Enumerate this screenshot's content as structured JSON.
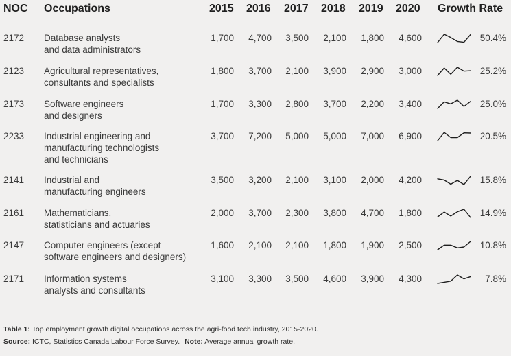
{
  "headers": {
    "noc": "NOC",
    "occupations": "Occupations",
    "y2015": "2015",
    "y2016": "2016",
    "y2017": "2017",
    "y2018": "2018",
    "y2019": "2019",
    "y2020": "2020",
    "growth": "Growth Rate"
  },
  "rows": [
    {
      "noc": "2172",
      "line1": "Database analysts",
      "line2": "and data administrators",
      "line3": "",
      "v": [
        "1,700",
        "4,700",
        "3,500",
        "2,100",
        "1,800",
        "4,600"
      ],
      "series": [
        1700,
        4700,
        3500,
        2100,
        1800,
        4600
      ],
      "rate": "50.4%"
    },
    {
      "noc": "2123",
      "line1": "Agricultural representatives,",
      "line2": "consultants and specialists",
      "line3": "",
      "v": [
        "1,800",
        "3,700",
        "2,100",
        "3,900",
        "2,900",
        "3,000"
      ],
      "series": [
        1800,
        3700,
        2100,
        3900,
        2900,
        3000
      ],
      "rate": "25.2%"
    },
    {
      "noc": "2173",
      "line1": "Software engineers",
      "line2": "and designers",
      "line3": "",
      "v": [
        "1,700",
        "3,300",
        "2,800",
        "3,700",
        "2,200",
        "3,400"
      ],
      "series": [
        1700,
        3300,
        2800,
        3700,
        2200,
        3400
      ],
      "rate": "25.0%"
    },
    {
      "noc": "2233",
      "line1": "Industrial engineering and",
      "line2": "manufacturing technologists",
      "line3": "and technicians",
      "v": [
        "3,700",
        "7,200",
        "5,000",
        "5,000",
        "7,000",
        "6,900"
      ],
      "series": [
        3700,
        7200,
        5000,
        5000,
        7000,
        6900
      ],
      "rate": "20.5%"
    },
    {
      "noc": "2141",
      "line1": "Industrial and",
      "line2": "manufacturing engineers",
      "line3": "",
      "v": [
        "3,500",
        "3,200",
        "2,100",
        "3,100",
        "2,000",
        "4,200"
      ],
      "series": [
        3500,
        3200,
        2100,
        3100,
        2000,
        4200
      ],
      "rate": "15.8%"
    },
    {
      "noc": "2161",
      "line1": "Mathematicians,",
      "line2": "statisticians and actuaries",
      "line3": "",
      "v": [
        "2,000",
        "3,700",
        "2,300",
        "3,800",
        "4,700",
        "1,800"
      ],
      "series": [
        2000,
        3700,
        2300,
        3800,
        4700,
        1800
      ],
      "rate": "14.9%"
    },
    {
      "noc": "2147",
      "line1": "Computer engineers (except",
      "line2": "software engineers and designers)",
      "line3": "",
      "v": [
        "1,600",
        "2,100",
        "2,100",
        "1,800",
        "1,900",
        "2,500"
      ],
      "series": [
        1600,
        2100,
        2100,
        1800,
        1900,
        2500
      ],
      "rate": "10.8%"
    },
    {
      "noc": "2171",
      "line1": "Information systems",
      "line2": "analysts and consultants",
      "line3": "",
      "v": [
        "3,100",
        "3,300",
        "3,500",
        "4,600",
        "3,900",
        "4,300"
      ],
      "series": [
        3100,
        3300,
        3500,
        4600,
        3900,
        4300
      ],
      "rate": "7.8%"
    }
  ],
  "footer": {
    "caption_label": "Table 1:",
    "caption_text": "Top employment growth digital occupations across the agri-food tech industry, 2015-2020.",
    "source_label": "Source:",
    "source_text": "ICTC, Statistics Canada Labour Force Survey.",
    "note_label": "Note:",
    "note_text": "Average annual growth rate."
  }
}
